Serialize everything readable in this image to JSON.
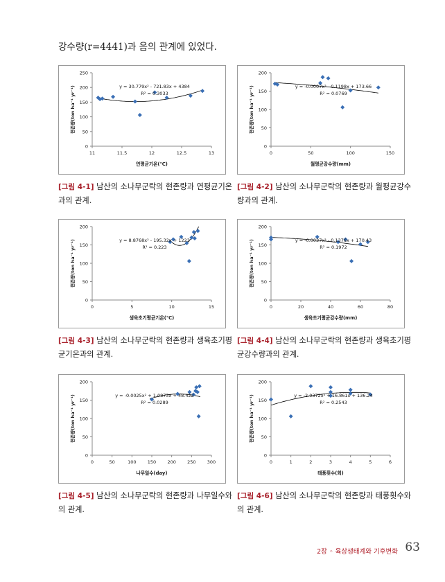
{
  "intro_text": "강수량(r=4441)과 음의 관계에 있었다.",
  "footer": {
    "chapter": "2장 ◦ 육상생태계와 기후변화",
    "page": "63"
  },
  "chart_data": [
    {
      "type": "scatter",
      "ylabel": "현존량(ton ha⁻¹ yr⁻¹)",
      "xlabel": "연평균기온(℃)",
      "xlim": [
        11,
        13
      ],
      "xticks": [
        11,
        11.5,
        12,
        12.5,
        13
      ],
      "xtick_labels": [
        "11",
        "11.5",
        "12",
        "12.5",
        "13"
      ],
      "ylim": [
        0,
        250
      ],
      "yticks": [
        0,
        50,
        100,
        150,
        200,
        250
      ],
      "points": [
        [
          11.1,
          165
        ],
        [
          11.13,
          160
        ],
        [
          11.17,
          162
        ],
        [
          11.35,
          168
        ],
        [
          11.72,
          152
        ],
        [
          11.8,
          106
        ],
        [
          12.05,
          183
        ],
        [
          12.25,
          165
        ],
        [
          12.65,
          172
        ],
        [
          12.85,
          188
        ]
      ],
      "equation": "y = 30.779x² - 721.83x + 4384",
      "r2": "R² = 0.3033",
      "trend": {
        "kind": "poly",
        "coef": [
          4384,
          -721.83,
          30.779
        ]
      },
      "caption_label": "[그림 4-1]",
      "caption": "남산의 소나무군락의 현존량과 연평균기온과의 관계."
    },
    {
      "type": "scatter",
      "ylabel": "현존량(ton ha⁻¹ yr⁻¹)",
      "xlabel": "월평균강수량(mm)",
      "xlim": [
        0,
        150
      ],
      "xticks": [
        0,
        50,
        100,
        150
      ],
      "xtick_labels": [
        "0",
        "50",
        "100",
        "150"
      ],
      "ylim": [
        0,
        200
      ],
      "yticks": [
        0,
        50,
        100,
        150,
        200
      ],
      "points": [
        [
          5,
          170
        ],
        [
          8,
          168
        ],
        [
          62,
          172
        ],
        [
          65,
          188
        ],
        [
          72,
          185
        ],
        [
          90,
          106
        ],
        [
          100,
          152
        ],
        [
          135,
          160
        ]
      ],
      "equation": "y = -0.0007x² - 0.1198x + 173.66",
      "r2": "R² = 0.0769",
      "trend": {
        "kind": "poly",
        "coef": [
          173.66,
          -0.1198,
          -0.0007
        ]
      },
      "caption_label": "[그림 4-2]",
      "caption": "남산의 소나무군락의 현존량과 월평균강수량과의 관계."
    },
    {
      "type": "scatter",
      "ylabel": "현존량(ton ha⁻¹ yr⁻¹)",
      "xlabel": "생육초기평균기온(℃)",
      "xlim": [
        0,
        15
      ],
      "xticks": [
        0,
        5,
        10,
        15
      ],
      "xtick_labels": [
        "0",
        "5",
        "10",
        "15"
      ],
      "ylim": [
        0,
        200
      ],
      "yticks": [
        0,
        50,
        100,
        150,
        200
      ],
      "points": [
        [
          9.8,
          158
        ],
        [
          10.2,
          165
        ],
        [
          11.2,
          172
        ],
        [
          11.9,
          155
        ],
        [
          12.2,
          106
        ],
        [
          12.5,
          170
        ],
        [
          12.8,
          185
        ],
        [
          12.9,
          168
        ],
        [
          13.3,
          188
        ]
      ],
      "equation": "y = 8.8768x² - 195.32x + 1223",
      "r2": "R² = 0.223",
      "trend": {
        "kind": "poly",
        "coef": [
          1223,
          -195.32,
          8.8768
        ],
        "range": [
          9.7,
          13.4
        ]
      },
      "caption_label": "[그림 4-3]",
      "caption": "남산의 소나무군락의 현존량과 생육초기평균기온과의 관계."
    },
    {
      "type": "scatter",
      "ylabel": "현존량(ton ha⁻¹ yr⁻¹)",
      "xlabel": "생육초기평균강수량(mm)",
      "xlim": [
        0,
        80
      ],
      "xticks": [
        0,
        20,
        40,
        60,
        80
      ],
      "xtick_labels": [
        "0",
        "20",
        "40",
        "60",
        "80"
      ],
      "ylim": [
        0,
        200
      ],
      "yticks": [
        0,
        50,
        100,
        150,
        200
      ],
      "points": [
        [
          0,
          165
        ],
        [
          0,
          170
        ],
        [
          31,
          172
        ],
        [
          45,
          158
        ],
        [
          50,
          165
        ],
        [
          54,
          106
        ],
        [
          60,
          152
        ],
        [
          65,
          158
        ]
      ],
      "equation": "y = -0.0037x² - 0.1376x + 170.43",
      "r2": "R² = 0.1972",
      "trend": {
        "kind": "poly",
        "coef": [
          170.43,
          -0.1376,
          -0.0037
        ],
        "range": [
          0,
          65
        ]
      },
      "caption_label": "[그림 4-4]",
      "caption": "남산의 소나무군락의 현존량과 생육초기평균강수량과의 관계."
    },
    {
      "type": "scatter",
      "ylabel": "현존량(ton ha⁻¹ yr⁻¹)",
      "xlabel": "나무일수(day)",
      "xlim": [
        0,
        300
      ],
      "xticks": [
        0,
        50,
        100,
        150,
        200,
        250,
        300
      ],
      "xtick_labels": [
        "0",
        "50",
        "100",
        "150",
        "200",
        "250",
        "300"
      ],
      "ylim": [
        0,
        200
      ],
      "yticks": [
        0,
        50,
        100,
        150,
        200
      ],
      "points": [
        [
          150,
          152
        ],
        [
          215,
          167
        ],
        [
          245,
          172
        ],
        [
          255,
          165
        ],
        [
          260,
          175
        ],
        [
          262,
          185
        ],
        [
          265,
          172
        ],
        [
          268,
          106
        ],
        [
          270,
          188
        ]
      ],
      "equation": "y = -0.0025x² + 1.0873x + 48.422",
      "r2": "R² = 0.0289",
      "trend": {
        "kind": "poly",
        "coef": [
          48.422,
          1.0873,
          -0.0025
        ],
        "range": [
          145,
          272
        ]
      },
      "caption_label": "[그림 4-5]",
      "caption": "남산의 소나무군락의 현존량과 나무일수와의 관계."
    },
    {
      "type": "scatter",
      "ylabel": "현존량(ton ha⁻¹ yr⁻¹)",
      "xlabel": "태풍횟수(회)",
      "xlim": [
        0,
        6
      ],
      "xticks": [
        0,
        1,
        2,
        3,
        4,
        5,
        6
      ],
      "xtick_labels": [
        "0",
        "1",
        "2",
        "3",
        "4",
        "5",
        "6"
      ],
      "ylim": [
        0,
        200
      ],
      "yticks": [
        0,
        50,
        100,
        150,
        200
      ],
      "points": [
        [
          0,
          152
        ],
        [
          1,
          106
        ],
        [
          2,
          188
        ],
        [
          3,
          162
        ],
        [
          3,
          172
        ],
        [
          3,
          185
        ],
        [
          4,
          168
        ],
        [
          4,
          178
        ],
        [
          5,
          165
        ]
      ],
      "equation": "y = -2.0372x² + 16.861x + 136.24",
      "r2": "R² = 0.2543",
      "trend": {
        "kind": "poly",
        "coef": [
          136.24,
          16.861,
          -2.0372
        ],
        "range": [
          0,
          5
        ]
      },
      "caption_label": "[그림 4-6]",
      "caption": "남산의 소나무군락의 현존량과 태풍횟수와의 관계."
    }
  ],
  "colors": {
    "marker": "#3a6fb5",
    "trend": "#000000",
    "caption_label": "#a8202a"
  }
}
